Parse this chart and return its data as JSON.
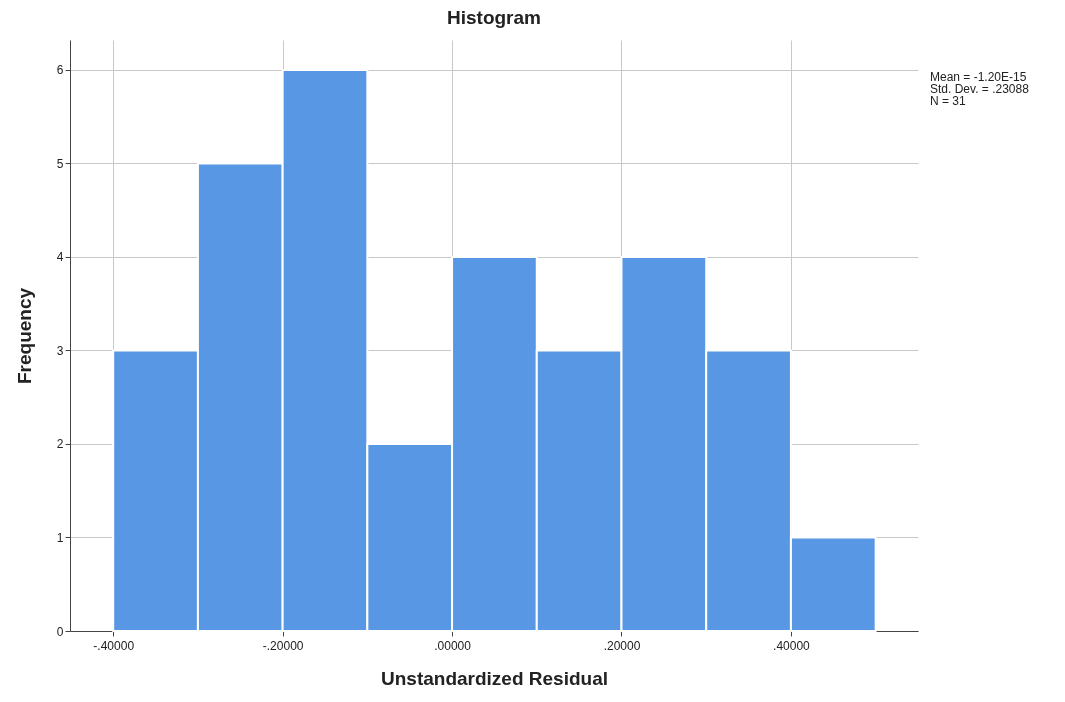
{
  "chart_data": {
    "type": "histogram",
    "title": "Histogram",
    "xlabel": "Unstandardized Residual",
    "ylabel": "Frequency",
    "bins": [
      -0.4,
      -0.3,
      -0.2,
      -0.1,
      0,
      0.1,
      0.2,
      0.3,
      0.4,
      0.5
    ],
    "values": [
      3,
      5,
      6,
      2,
      4,
      3,
      4,
      3,
      1
    ],
    "color": "#5797e3",
    "xlim": [
      -0.451,
      0.55
    ],
    "ylim": [
      0,
      6.32
    ],
    "xticks": [
      {
        "value": -0.4,
        "label": "-.40000"
      },
      {
        "value": -0.2,
        "label": "-.20000"
      },
      {
        "value": 0,
        "label": ".00000"
      },
      {
        "value": 0.2,
        "label": ".20000"
      },
      {
        "value": 0.4,
        "label": ".40000"
      }
    ],
    "yticks": [
      0,
      1,
      2,
      3,
      4,
      5,
      6
    ],
    "grid": true,
    "annotations": [
      "Mean = -1.20E-15",
      "Std. Dev. = .23088",
      "N = 31"
    ]
  }
}
